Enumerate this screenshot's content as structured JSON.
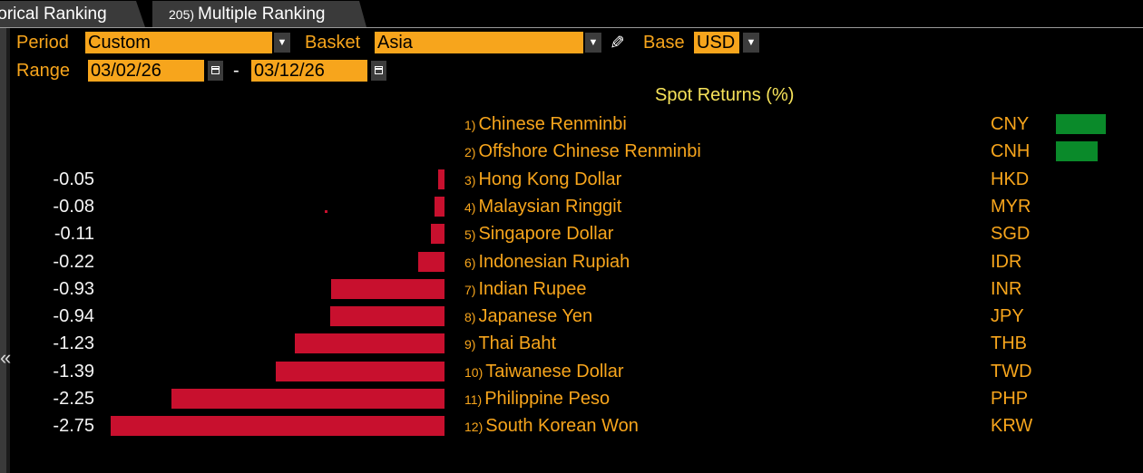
{
  "tabs": [
    {
      "label": "torical Ranking"
    },
    {
      "num": "205)",
      "label": "Multiple Ranking"
    }
  ],
  "controls": {
    "period_label": "Period",
    "period_value": "Custom",
    "basket_label": "Basket",
    "basket_value": "Asia",
    "base_label": "Base",
    "base_value": "USD",
    "range_label": "Range",
    "range_start": "03/02/26",
    "range_sep": "-",
    "range_end": "03/12/26"
  },
  "icons": [
    "chevron-down-icon",
    "calendar-icon",
    "pencil-icon",
    "collapse-left-icon"
  ],
  "colors": {
    "accent": "#f7a51c",
    "negative": "#c8102e",
    "positive": "#0a8a2a",
    "title": "#f7e35a"
  },
  "chart_data": {
    "type": "bar",
    "title": "Spot Returns (%)",
    "rows": [
      {
        "rank": "1)",
        "name": "Chinese Renminbi",
        "code": "CNY",
        "value_label": "",
        "value": 0.12
      },
      {
        "rank": "2)",
        "name": "Offshore Chinese Renminbi",
        "code": "CNH",
        "value_label": "",
        "value": 0.1
      },
      {
        "rank": "3)",
        "name": "Hong Kong Dollar",
        "code": "HKD",
        "value_label": "-0.05",
        "value": -0.05
      },
      {
        "rank": "4)",
        "name": "Malaysian Ringgit",
        "code": "MYR",
        "value_label": "-0.08",
        "value": -0.08
      },
      {
        "rank": "5)",
        "name": "Singapore Dollar",
        "code": "SGD",
        "value_label": "-0.11",
        "value": -0.11
      },
      {
        "rank": "6)",
        "name": "Indonesian Rupiah",
        "code": "IDR",
        "value_label": "-0.22",
        "value": -0.22
      },
      {
        "rank": "7)",
        "name": "Indian Rupee",
        "code": "INR",
        "value_label": "-0.93",
        "value": -0.93
      },
      {
        "rank": "8)",
        "name": "Japanese Yen",
        "code": "JPY",
        "value_label": "-0.94",
        "value": -0.94
      },
      {
        "rank": "9)",
        "name": "Thai Baht",
        "code": "THB",
        "value_label": "-1.23",
        "value": -1.23
      },
      {
        "rank": "10)",
        "name": "Taiwanese Dollar",
        "code": "TWD",
        "value_label": "-1.39",
        "value": -1.39
      },
      {
        "rank": "11)",
        "name": "Philippine Peso",
        "code": "PHP",
        "value_label": "-2.25",
        "value": -2.25
      },
      {
        "rank": "12)",
        "name": "South Korean Won",
        "code": "KRW",
        "value_label": "-2.75",
        "value": -2.75
      }
    ]
  }
}
